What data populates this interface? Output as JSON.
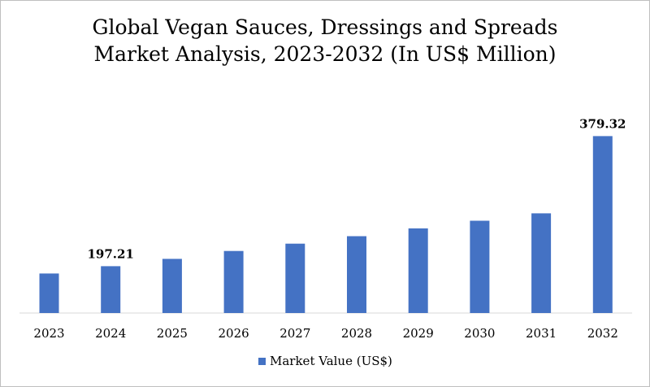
{
  "chart_data": {
    "type": "bar",
    "title_line1": "Global Vegan Sauces, Dressings and Spreads",
    "title_line2": "Market Analysis, 2023-2032 (In US$ Million)",
    "categories": [
      "2023",
      "2024",
      "2025",
      "2026",
      "2027",
      "2028",
      "2029",
      "2030",
      "2031",
      "2032"
    ],
    "series": [
      {
        "name": "Market Value (US$)",
        "color": "#4472c4",
        "values": [
          187.0,
          197.21,
          207.5,
          218.5,
          228.7,
          239.2,
          250.1,
          260.8,
          271.2,
          379.32
        ]
      }
    ],
    "data_labels": [
      {
        "index": 1,
        "text": "197.21"
      },
      {
        "index": 9,
        "text": "379.32"
      }
    ],
    "axis_color": "#d9d9d9",
    "legend_position": "bottom"
  }
}
